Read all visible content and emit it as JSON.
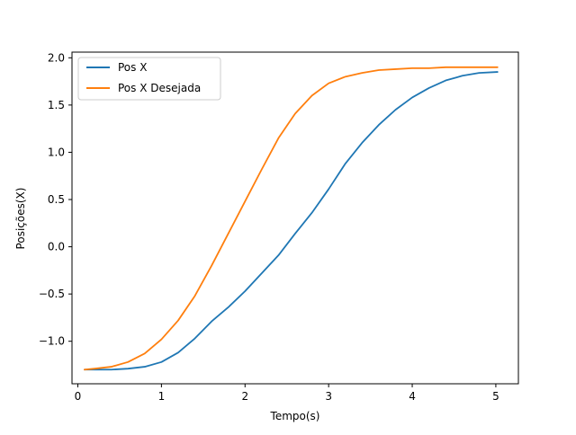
{
  "chart_data": {
    "type": "line",
    "title": "",
    "xlabel": "Tempo(s)",
    "ylabel": "Posições(X)",
    "xlim": [
      -0.07,
      5.27
    ],
    "ylim": [
      -1.45,
      2.06
    ],
    "xticks": [
      0,
      1,
      2,
      3,
      4,
      5
    ],
    "xtick_labels": [
      "0",
      "1",
      "2",
      "3",
      "4",
      "5"
    ],
    "yticks": [
      -1.0,
      -0.5,
      0.0,
      0.5,
      1.0,
      1.5,
      2.0
    ],
    "ytick_labels": [
      "−1.0",
      "−0.5",
      "0.0",
      "0.5",
      "1.0",
      "1.5",
      "2.0"
    ],
    "grid": false,
    "legend": {
      "position": "top-left",
      "entries": [
        "Pos X",
        "Pos X Desejada"
      ]
    },
    "series": [
      {
        "name": "Pos X",
        "color": "#1f77b4",
        "x": [
          0.08,
          0.2,
          0.4,
          0.6,
          0.8,
          1.0,
          1.2,
          1.4,
          1.6,
          1.8,
          2.0,
          2.2,
          2.4,
          2.6,
          2.8,
          3.0,
          3.2,
          3.4,
          3.6,
          3.8,
          4.0,
          4.2,
          4.4,
          4.6,
          4.8,
          5.02
        ],
        "y": [
          -1.3,
          -1.3,
          -1.3,
          -1.29,
          -1.27,
          -1.22,
          -1.12,
          -0.97,
          -0.79,
          -0.64,
          -0.47,
          -0.28,
          -0.09,
          0.14,
          0.36,
          0.61,
          0.88,
          1.1,
          1.29,
          1.45,
          1.58,
          1.68,
          1.76,
          1.81,
          1.84,
          1.85
        ]
      },
      {
        "name": "Pos X Desejada",
        "color": "#ff7f0e",
        "x": [
          0.08,
          0.2,
          0.4,
          0.6,
          0.8,
          1.0,
          1.2,
          1.4,
          1.6,
          1.8,
          2.0,
          2.2,
          2.4,
          2.6,
          2.8,
          3.0,
          3.2,
          3.4,
          3.6,
          3.8,
          4.0,
          4.2,
          4.4,
          4.6,
          4.8,
          5.02
        ],
        "y": [
          -1.3,
          -1.29,
          -1.27,
          -1.22,
          -1.13,
          -0.98,
          -0.78,
          -0.52,
          -0.2,
          0.14,
          0.48,
          0.82,
          1.15,
          1.41,
          1.6,
          1.73,
          1.8,
          1.84,
          1.87,
          1.88,
          1.89,
          1.89,
          1.9,
          1.9,
          1.9,
          1.9
        ]
      }
    ]
  }
}
